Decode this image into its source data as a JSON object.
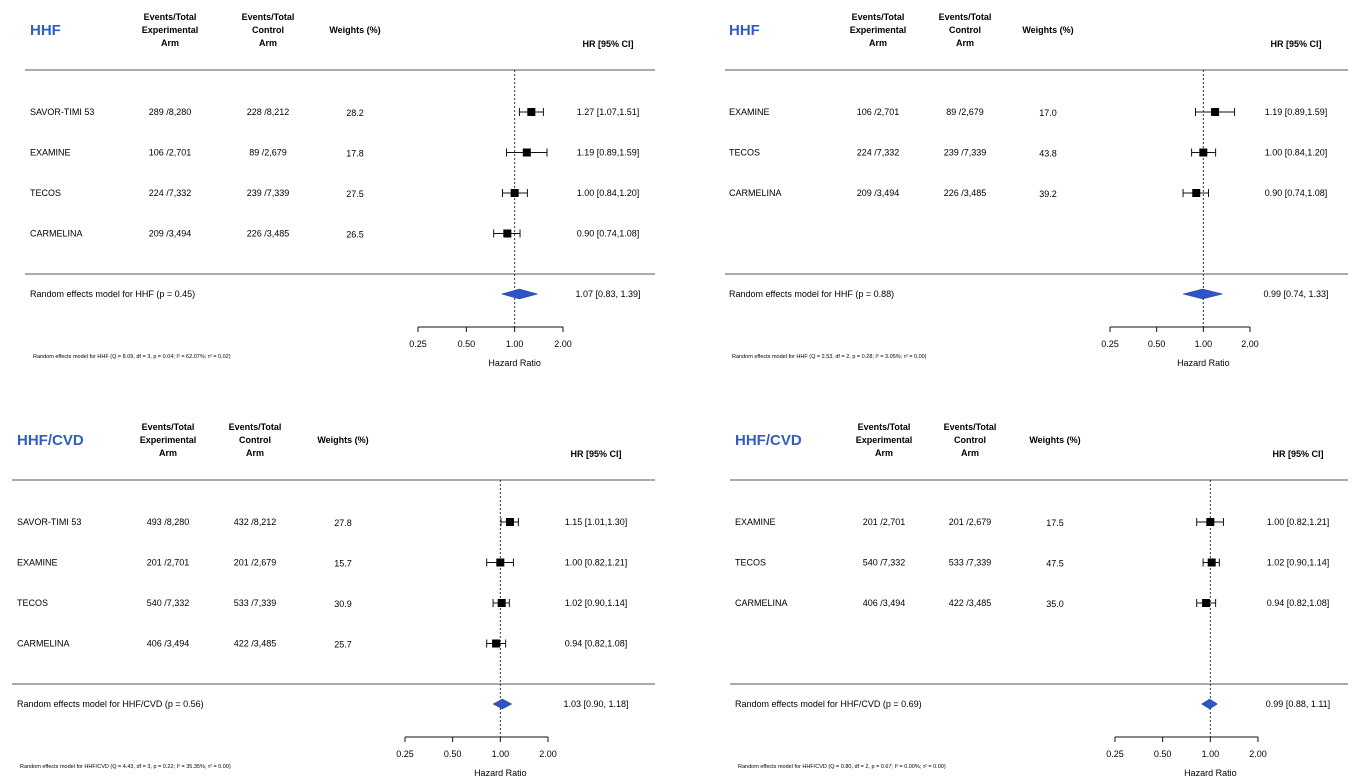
{
  "common": {
    "col_events_exp": [
      "Events/Total",
      "Experimental",
      "Arm"
    ],
    "col_events_ctrl": [
      "Events/Total",
      "Control",
      "Arm"
    ],
    "col_weights": "Weights (%)",
    "col_hr": "HR [95% CI]",
    "axis_ticks": [
      "0.25",
      "0.50",
      "1.00",
      "2.00"
    ],
    "axis_label": "Hazard Ratio",
    "colors": {
      "title": "#2f5fbf",
      "diamond": "#2d56c4",
      "line": "#555555"
    }
  },
  "chart_data": [
    {
      "type": "forest",
      "title": "HHF",
      "x_scale": "log",
      "xlim": [
        0.25,
        2.0
      ],
      "reference_line": 1.0,
      "studies": [
        {
          "name": "SAVOR-TIMI 53",
          "exp": "289 /8,280",
          "ctrl": "228 /8,212",
          "weight": "28.2",
          "hr": 1.27,
          "lo": 1.07,
          "hi": 1.51,
          "label": "1.27 [1.07,1.51]"
        },
        {
          "name": "EXAMINE",
          "exp": "106 /2,701",
          "ctrl": "89 /2,679",
          "weight": "17.8",
          "hr": 1.19,
          "lo": 0.89,
          "hi": 1.59,
          "label": "1.19 [0.89,1.59]"
        },
        {
          "name": "TECOS",
          "exp": "224 /7,332",
          "ctrl": "239 /7,339",
          "weight": "27.5",
          "hr": 1.0,
          "lo": 0.84,
          "hi": 1.2,
          "label": "1.00 [0.84,1.20]"
        },
        {
          "name": "CARMELINA",
          "exp": "209 /3,494",
          "ctrl": "226 /3,485",
          "weight": "26.5",
          "hr": 0.9,
          "lo": 0.74,
          "hi": 1.08,
          "label": "0.90 [0.74,1.08]"
        }
      ],
      "summary": {
        "label": "Random effects model for HHF (p = 0.45)",
        "hr": 1.07,
        "lo": 0.83,
        "hi": 1.39,
        "ci_label": "1.07 [0.83, 1.39]"
      },
      "footnote": "Random effects model for HHF (Q = 8.09, df = 3, p = 0.04; I² = 62.07%; τ² = 0.02)"
    },
    {
      "type": "forest",
      "title": "HHF",
      "x_scale": "log",
      "xlim": [
        0.25,
        2.0
      ],
      "reference_line": 1.0,
      "studies": [
        {
          "name": "EXAMINE",
          "exp": "106 /2,701",
          "ctrl": "89 /2,679",
          "weight": "17.0",
          "hr": 1.19,
          "lo": 0.89,
          "hi": 1.59,
          "label": "1.19 [0.89,1.59]"
        },
        {
          "name": "TECOS",
          "exp": "224 /7,332",
          "ctrl": "239 /7,339",
          "weight": "43.8",
          "hr": 1.0,
          "lo": 0.84,
          "hi": 1.2,
          "label": "1.00 [0.84,1.20]"
        },
        {
          "name": "CARMELINA",
          "exp": "209 /3,494",
          "ctrl": "226 /3,485",
          "weight": "39.2",
          "hr": 0.9,
          "lo": 0.74,
          "hi": 1.08,
          "label": "0.90 [0.74,1.08]"
        }
      ],
      "summary": {
        "label": "Random effects model for HHF (p = 0.88)",
        "hr": 0.99,
        "lo": 0.74,
        "hi": 1.33,
        "ci_label": "0.99 [0.74, 1.33]"
      },
      "footnote": "Random effects model for HHF (Q = 2.53, df = 2, p = 0.28; I² = 3.05%; τ² = 0.00)"
    },
    {
      "type": "forest",
      "title": "HHF/CVD",
      "x_scale": "log",
      "xlim": [
        0.25,
        2.0
      ],
      "reference_line": 1.0,
      "studies": [
        {
          "name": "SAVOR-TIMI 53",
          "exp": "493 /8,280",
          "ctrl": "432 /8,212",
          "weight": "27.8",
          "hr": 1.15,
          "lo": 1.01,
          "hi": 1.3,
          "label": "1.15 [1.01,1.30]"
        },
        {
          "name": "EXAMINE",
          "exp": "201 /2,701",
          "ctrl": "201 /2,679",
          "weight": "15.7",
          "hr": 1.0,
          "lo": 0.82,
          "hi": 1.21,
          "label": "1.00 [0.82,1.21]"
        },
        {
          "name": "TECOS",
          "exp": "540 /7,332",
          "ctrl": "533 /7,339",
          "weight": "30.9",
          "hr": 1.02,
          "lo": 0.9,
          "hi": 1.14,
          "label": "1.02 [0.90,1.14]"
        },
        {
          "name": "CARMELINA",
          "exp": "406 /3,494",
          "ctrl": "422 /3,485",
          "weight": "25.7",
          "hr": 0.94,
          "lo": 0.82,
          "hi": 1.08,
          "label": "0.94 [0.82,1.08]"
        }
      ],
      "summary": {
        "label": "Random effects model for HHF/CVD (p = 0.56)",
        "hr": 1.03,
        "lo": 0.9,
        "hi": 1.18,
        "ci_label": "1.03 [0.90, 1.18]"
      },
      "footnote": "Random effects model for HHF/CVD (Q = 4.43, df = 3, p = 0.22; I² = 35.35%; τ² = 0.00)"
    },
    {
      "type": "forest",
      "title": "HHF/CVD",
      "x_scale": "log",
      "xlim": [
        0.25,
        2.0
      ],
      "reference_line": 1.0,
      "studies": [
        {
          "name": "EXAMINE",
          "exp": "201 /2,701",
          "ctrl": "201 /2,679",
          "weight": "17.5",
          "hr": 1.0,
          "lo": 0.82,
          "hi": 1.21,
          "label": "1.00 [0.82,1.21]"
        },
        {
          "name": "TECOS",
          "exp": "540 /7,332",
          "ctrl": "533 /7,339",
          "weight": "47.5",
          "hr": 1.02,
          "lo": 0.9,
          "hi": 1.14,
          "label": "1.02 [0.90,1.14]"
        },
        {
          "name": "CARMELINA",
          "exp": "406 /3,494",
          "ctrl": "422 /3,485",
          "weight": "35.0",
          "hr": 0.94,
          "lo": 0.82,
          "hi": 1.08,
          "label": "0.94 [0.82,1.08]"
        }
      ],
      "summary": {
        "label": "Random effects model for HHF/CVD (p = 0.69)",
        "hr": 0.99,
        "lo": 0.88,
        "hi": 1.11,
        "ci_label": "0.99 [0.88, 1.11]"
      },
      "footnote": "Random effects model for HHF/CVD (Q = 0.80, df = 2, p = 0.67; I² = 0.00%; τ² = 0.00)"
    }
  ]
}
